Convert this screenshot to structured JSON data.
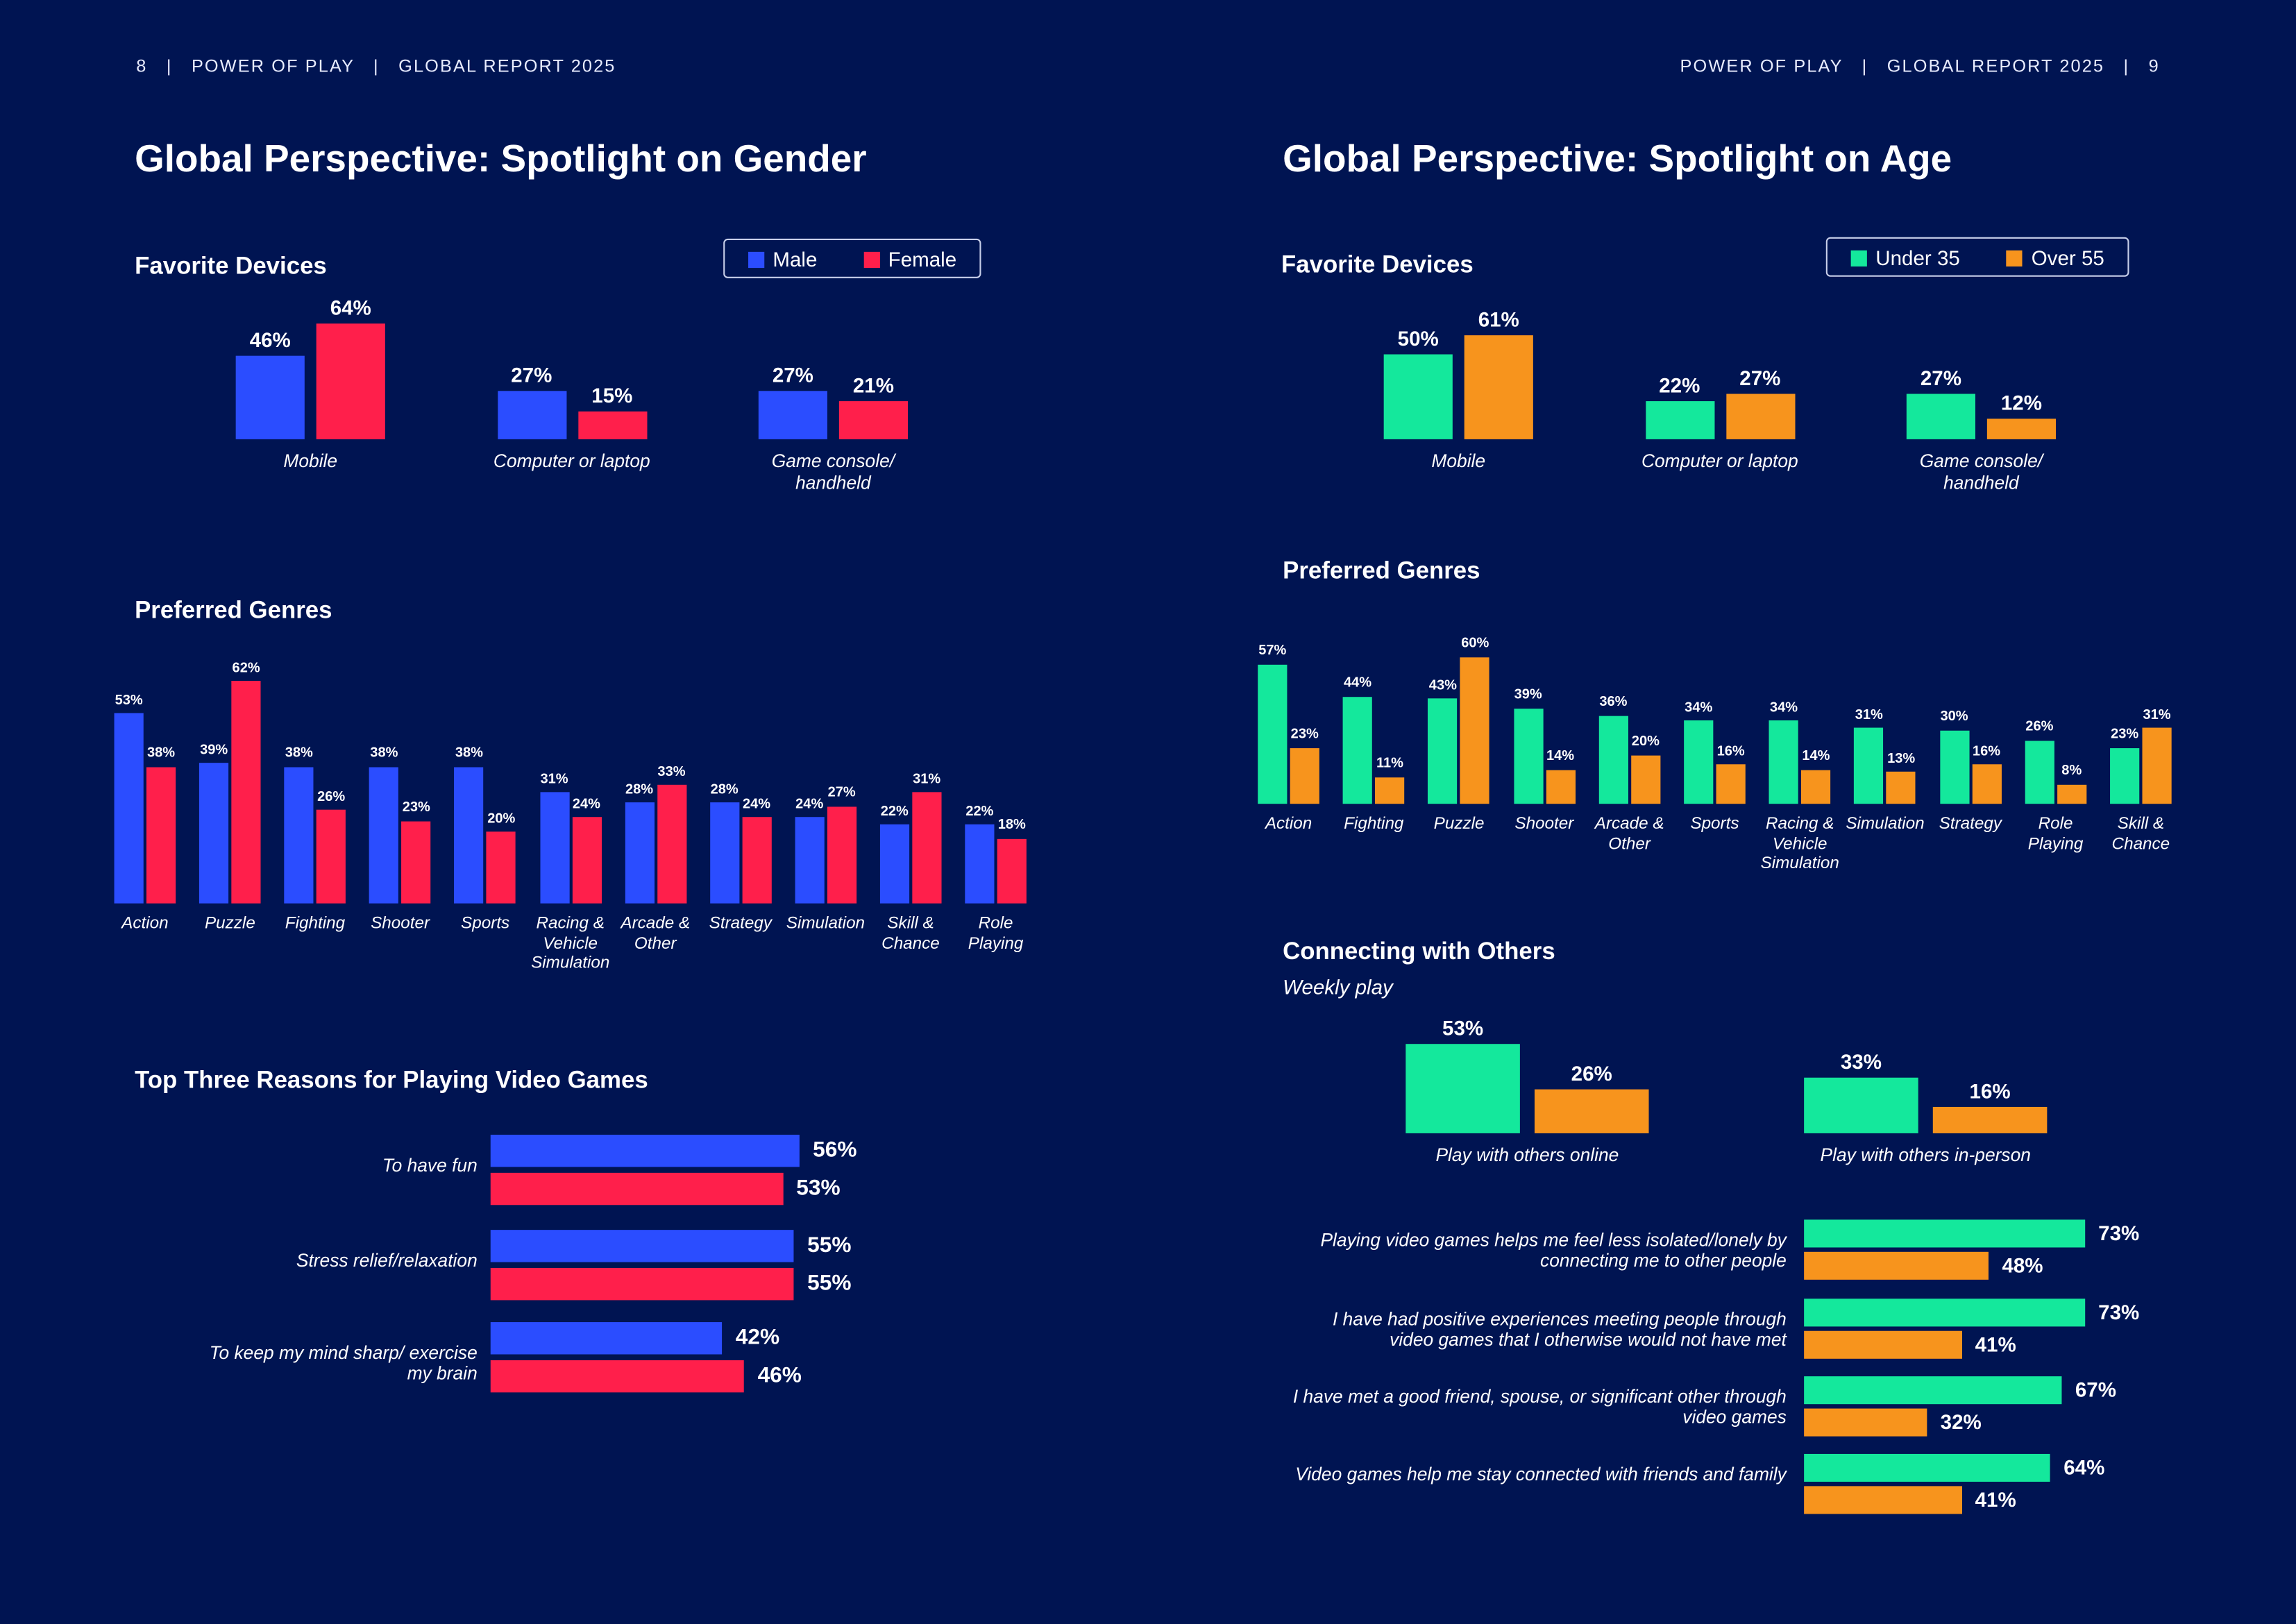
{
  "colors": {
    "background": "#001452",
    "male": "#2b4dff",
    "female": "#ff1f4b",
    "under35": "#14e89c",
    "over55": "#f7941d"
  },
  "left_page": {
    "header": "8   |   POWER OF PLAY   |   GLOBAL REPORT 2025",
    "title": "Global Perspective: Spotlight on Gender"
  },
  "right_page": {
    "header": "POWER OF PLAY   |   GLOBAL REPORT 2025   |   9",
    "title": "Global Perspective: Spotlight on Age"
  },
  "chart_data": [
    {
      "id": "gender_devices",
      "type": "bar",
      "title": "Favorite Devices",
      "legend": [
        "Male",
        "Female"
      ],
      "legend_placement": "top-right",
      "categories": [
        "Mobile",
        "Computer or laptop",
        "Game console/ handheld"
      ],
      "series": [
        {
          "name": "Male",
          "values": [
            46,
            27,
            27
          ]
        },
        {
          "name": "Female",
          "values": [
            64,
            15,
            21
          ]
        }
      ]
    },
    {
      "id": "gender_genres",
      "type": "bar",
      "title": "Preferred Genres",
      "categories": [
        "Action",
        "Puzzle",
        "Fighting",
        "Shooter",
        "Sports",
        "Racing & Vehicle Simulation",
        "Arcade & Other",
        "Strategy",
        "Simulation",
        "Skill & Chance",
        "Role Playing"
      ],
      "series": [
        {
          "name": "Male",
          "values": [
            53,
            39,
            38,
            38,
            38,
            31,
            28,
            28,
            24,
            22,
            22
          ]
        },
        {
          "name": "Female",
          "values": [
            38,
            62,
            26,
            23,
            20,
            24,
            33,
            24,
            27,
            31,
            18
          ]
        }
      ]
    },
    {
      "id": "gender_reasons",
      "type": "bar",
      "orientation": "horizontal",
      "title": "Top Three Reasons for Playing Video Games",
      "categories": [
        "To have fun",
        "Stress relief/relaxation",
        "To keep my mind sharp/ exercise my brain"
      ],
      "series": [
        {
          "name": "Male",
          "values": [
            56,
            55,
            42
          ]
        },
        {
          "name": "Female",
          "values": [
            53,
            55,
            46
          ]
        }
      ]
    },
    {
      "id": "age_devices",
      "type": "bar",
      "title": "Favorite Devices",
      "legend": [
        "Under 35",
        "Over 55"
      ],
      "legend_placement": "top-right",
      "categories": [
        "Mobile",
        "Computer or laptop",
        "Game console/ handheld"
      ],
      "series": [
        {
          "name": "Under 35",
          "values": [
            50,
            22,
            27
          ]
        },
        {
          "name": "Over 55",
          "values": [
            61,
            27,
            12
          ]
        }
      ]
    },
    {
      "id": "age_genres",
      "type": "bar",
      "title": "Preferred Genres",
      "categories": [
        "Action",
        "Fighting",
        "Puzzle",
        "Shooter",
        "Arcade & Other",
        "Sports",
        "Racing & Vehicle Simulation",
        "Simulation",
        "Strategy",
        "Role Playing",
        "Skill & Chance"
      ],
      "series": [
        {
          "name": "Under 35",
          "values": [
            57,
            44,
            43,
            39,
            36,
            34,
            34,
            31,
            30,
            26,
            23
          ]
        },
        {
          "name": "Over 55",
          "values": [
            23,
            11,
            60,
            14,
            20,
            16,
            14,
            13,
            16,
            8,
            31
          ]
        }
      ]
    },
    {
      "id": "age_connecting",
      "type": "bar",
      "title": "Connecting with Others",
      "subtitle": "Weekly play",
      "categories": [
        "Play with others online",
        "Play with others in-person"
      ],
      "series": [
        {
          "name": "Under 35",
          "values": [
            53,
            33
          ]
        },
        {
          "name": "Over 55",
          "values": [
            26,
            16
          ]
        }
      ]
    },
    {
      "id": "age_statements",
      "type": "bar",
      "orientation": "horizontal",
      "categories": [
        "Playing video games helps me feel less isolated/lonely by connecting me to other people",
        "I have had positive experiences meeting people through video games that I otherwise would not have met",
        "I have met a good friend, spouse, or significant other through video games",
        "Video games help me stay connected with friends and family"
      ],
      "series": [
        {
          "name": "Under 35",
          "values": [
            73,
            73,
            67,
            64
          ]
        },
        {
          "name": "Over 55",
          "values": [
            48,
            41,
            32,
            41
          ]
        }
      ]
    }
  ]
}
